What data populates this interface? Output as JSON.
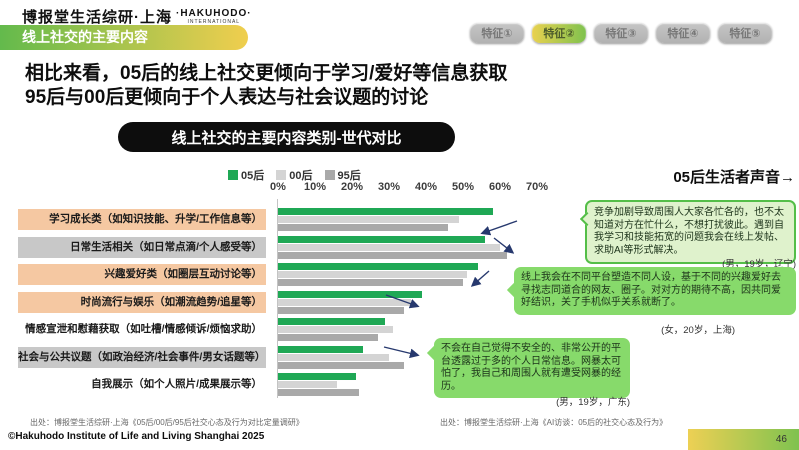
{
  "header": {
    "brand": "博报堂生活综研·上海",
    "logo": "·HAKUHODO·",
    "logo_sub": "INTERNATIONAL",
    "section_pill": "线上社交的主要内容",
    "tabs": [
      {
        "label": "特征①",
        "active": false
      },
      {
        "label": "特征②",
        "active": true
      },
      {
        "label": "特征③",
        "active": false
      },
      {
        "label": "特征④",
        "active": false
      },
      {
        "label": "特征⑤",
        "active": false
      }
    ]
  },
  "title": {
    "line1": "相比来看，05后的线上社交更倾向于学习/爱好等信息获取",
    "line2": "95后与00后更倾向于个人表达与社会议题的讨论"
  },
  "chart_data": {
    "type": "bar",
    "orientation": "horizontal",
    "title": "线上社交的主要内容类别-世代对比",
    "categories": [
      "学习成长类（如知识技能、升学/工作信息等）",
      "日常生活相关（如日常点滴/个人感受等）",
      "兴趣爱好类（如圈层互动讨论等）",
      "时尚流行与娱乐（如潮流趋势/追星等）",
      "情感宣泄和慰藉获取（如吐槽/情感倾诉/烦恼求助）",
      "社会与公共议题（如政治经济/社会事件/男女话题等）",
      "自我展示（如个人照片/成果展示等）"
    ],
    "category_bg": [
      "salmon",
      "gray",
      "salmon",
      "salmon",
      "none",
      "gray",
      "none"
    ],
    "series": [
      {
        "name": "05后",
        "color": "#1FA855",
        "values": [
          58,
          56,
          54,
          39,
          29,
          23,
          21
        ]
      },
      {
        "name": "00后",
        "color": "#D4D4D4",
        "values": [
          49,
          60,
          51,
          36,
          31,
          30,
          16
        ]
      },
      {
        "name": "95后",
        "color": "#A9A9A9",
        "values": [
          46,
          62,
          50,
          34,
          27,
          34,
          22
        ]
      }
    ],
    "x_ticks": [
      "0%",
      "10%",
      "20%",
      "30%",
      "40%",
      "50%",
      "60%",
      "70%"
    ],
    "xlim": [
      0,
      70
    ],
    "unit": "%",
    "legend_position": "top",
    "grid": false
  },
  "voices": {
    "heading": "05后生活者声音→",
    "bubbles": [
      {
        "text": "竞争加剧导致周围人大家各忙各的，也不太知道对方在忙什么，不想打扰彼此。遇到自我学习和技能拓宽的问题我会在线上发帖、求助AI等形式解决。",
        "attribution": "(男，19岁，辽宁)"
      },
      {
        "text": "线上我会在不同平台塑造不同人设，基于不同的兴趣爱好去寻找志同道合的网友、圈子。对对方的期待不高，因共同爱好结识，关了手机似乎关系就断了。",
        "attribution": "(女，20岁，上海)"
      },
      {
        "text": "不会在自己觉得不安全的、非常公开的平台透露过于多的个人日常信息。网暴太可怕了，我自己和周围人就有遭受网暴的经历。",
        "attribution": "(男，19岁，广东)"
      }
    ]
  },
  "footer": {
    "source_left": "出处：博报堂生活综研·上海《05后/00后/95后社交心态及行为对比定量调研》",
    "source_right": "出处：博报堂生活综研·上海《AI访谈：05后的社交心态及行为》",
    "copyright": "©Hakuhodo Institute of Life and Living Shanghai 2025",
    "page": "46"
  },
  "colors": {
    "accent_green": "#1FA855",
    "pill_gradient_start": "#63BA4C",
    "pill_gradient_end": "#F0CE4E",
    "label_salmon": "#F5C8A2",
    "label_gray": "#C8C8C8",
    "arrow_navy": "#27396E",
    "bubble_light": "#DFF2CC",
    "bubble_border": "#54BE48",
    "bubble_solid": "#87DA6B"
  }
}
